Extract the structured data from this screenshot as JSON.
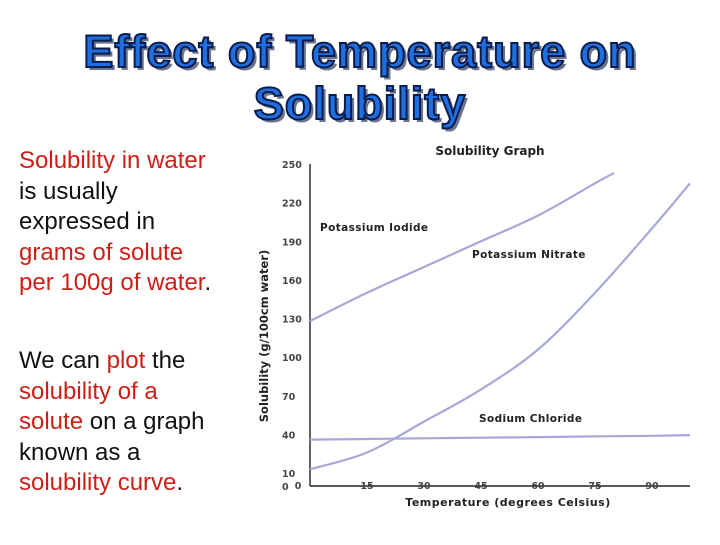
{
  "slide": {
    "title_line1": "Effect of Temperature on",
    "title_line2": "Solubility",
    "paragraph1": {
      "p1": "Solubility in water",
      "p2": "is usually",
      "p3": "expressed in",
      "p4": "grams of solute",
      "p5": "per 100g of water",
      "p6": "."
    },
    "paragraph2": {
      "p1": "We can",
      "p2": "plot",
      "p3": "the",
      "p4": "solubility of a",
      "p5": "solute",
      "p6": "on a graph known as a",
      "p7": "solubility curve",
      "p8": "."
    },
    "colors": {
      "title_fill": "#1f6fe0",
      "highlight_red": "#cc1f16",
      "curve": "#a8a8d8"
    }
  },
  "chart_data": {
    "type": "line",
    "title": "Solubility Graph",
    "xlabel": "Temperature (degrees Celsius)",
    "ylabel": "Solubility (g/100cm water)",
    "xlim": [
      0,
      100
    ],
    "ylim": [
      0,
      250
    ],
    "x_ticks": [
      "0",
      "15",
      "30",
      "45",
      "60",
      "75",
      "90"
    ],
    "y_ticks": [
      "0",
      "10",
      "40",
      "70",
      "100",
      "130",
      "160",
      "190",
      "220",
      "250"
    ],
    "series": [
      {
        "name": "Potassium Iodide",
        "x": [
          0,
          15,
          30,
          45,
          60,
          75,
          80
        ],
        "y": [
          128,
          150,
          170,
          190,
          210,
          235,
          243
        ]
      },
      {
        "name": "Potassium Nitrate",
        "x": [
          0,
          15,
          30,
          45,
          60,
          75,
          90,
          100
        ],
        "y": [
          13,
          26,
          50,
          75,
          106,
          150,
          200,
          235
        ]
      },
      {
        "name": "Sodium Chloride",
        "x": [
          0,
          15,
          30,
          45,
          60,
          75,
          90,
          100
        ],
        "y": [
          36,
          36.5,
          37,
          37.5,
          38,
          38.5,
          39,
          39.5
        ]
      }
    ],
    "legend": "curve labels placed beside each curve"
  }
}
